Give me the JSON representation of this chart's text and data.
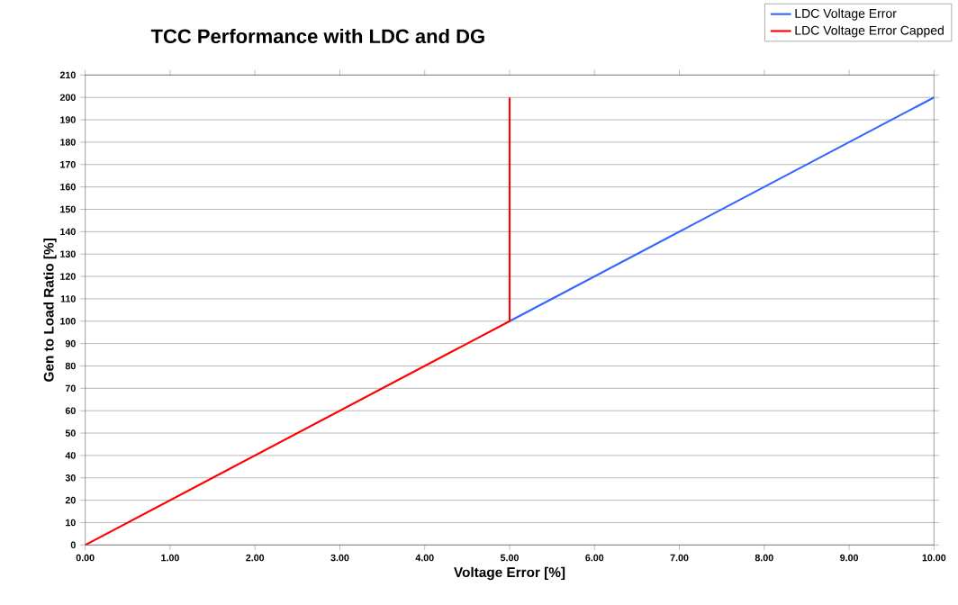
{
  "chart_data": {
    "type": "line",
    "title": "TCC Performance with LDC and DG",
    "xlabel": "Voltage Error [%]",
    "ylabel": "Gen to Load Ratio [%]",
    "series": [
      {
        "name": "LDC Voltage Error",
        "color": "#3366ff",
        "x": [
          5,
          10
        ],
        "values": [
          100,
          200
        ]
      },
      {
        "name": "LDC Voltage Error Capped",
        "color": "#ff0000",
        "x": [
          0,
          5,
          5
        ],
        "values": [
          0,
          100,
          200
        ]
      }
    ],
    "xlim": [
      0,
      10
    ],
    "ylim": [
      0,
      210
    ],
    "xticks": [
      {
        "value": 0,
        "label": "0.00"
      },
      {
        "value": 1,
        "label": "1.00"
      },
      {
        "value": 2,
        "label": "2.00"
      },
      {
        "value": 3,
        "label": "3.00"
      },
      {
        "value": 4,
        "label": "4.00"
      },
      {
        "value": 5,
        "label": "5.00"
      },
      {
        "value": 6,
        "label": "6.00"
      },
      {
        "value": 7,
        "label": "7.00"
      },
      {
        "value": 8,
        "label": "8.00"
      },
      {
        "value": 9,
        "label": "9.00"
      },
      {
        "value": 10,
        "label": "10.00"
      }
    ],
    "yticks": [
      0,
      10,
      20,
      30,
      40,
      50,
      60,
      70,
      80,
      90,
      100,
      110,
      120,
      130,
      140,
      150,
      160,
      170,
      180,
      190,
      200,
      210
    ],
    "grid": "y",
    "legend": "top right",
    "line_style": "solid"
  }
}
